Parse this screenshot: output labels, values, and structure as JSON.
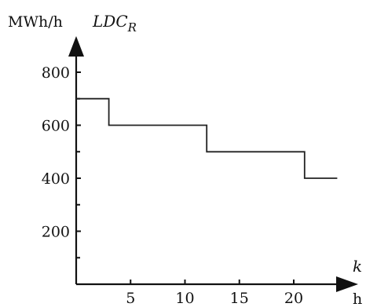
{
  "chart_data": {
    "type": "line",
    "step": true,
    "y_unit_label": "MWh/h",
    "y_var_label": "LDC",
    "y_var_subscript": "R",
    "x_var_label": "k",
    "x_unit_label": "h",
    "x_ticks": [
      5,
      10,
      15,
      20
    ],
    "y_ticks": [
      200,
      400,
      600,
      800
    ],
    "xlim": [
      0,
      24
    ],
    "ylim": [
      0,
      880
    ],
    "grid": false,
    "legend": "none",
    "x": [
      0,
      3,
      3,
      12,
      12,
      21,
      21,
      24
    ],
    "y": [
      700,
      700,
      600,
      600,
      500,
      500,
      400,
      400
    ]
  }
}
